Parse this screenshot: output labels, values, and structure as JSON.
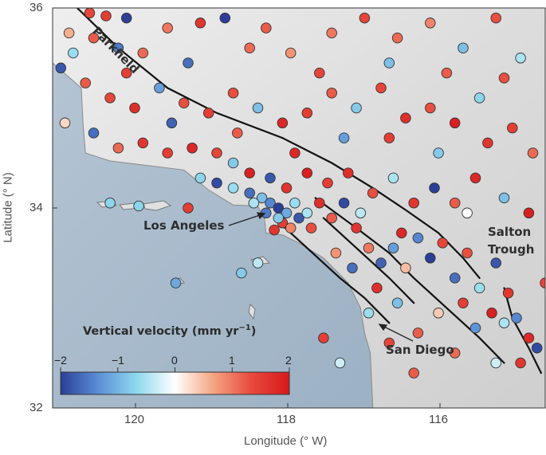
{
  "axes": {
    "xlabel": "Longitude (° W)",
    "ylabel": "Latitude (° N)",
    "x_ticks": [
      "120",
      "118",
      "116"
    ],
    "y_ticks": [
      "36",
      "34",
      "32"
    ]
  },
  "places": {
    "parkfield": "Parkfield",
    "los_angeles": "Los Angeles",
    "salton_1": "Salton",
    "salton_2": "Trough",
    "san_diego": "San Diego"
  },
  "colorbar": {
    "title_main": "Vertical velocity (mm yr",
    "title_sup": "−1",
    "title_close": ")",
    "ticks": [
      "−2",
      "−1",
      "0",
      "1",
      "2"
    ],
    "range": [
      -2,
      2
    ],
    "colors": [
      "#2b3f99",
      "#5b8fd6",
      "#8fd9ee",
      "#ffffff",
      "#f4a582",
      "#e84a3c",
      "#d7191c"
    ]
  },
  "map_data": {
    "lon_range": [
      121.0,
      115.0
    ],
    "lat_range": [
      32.0,
      36.0
    ],
    "faults": [
      [
        [
          120.7,
          36.0
        ],
        [
          120.2,
          35.6
        ],
        [
          119.6,
          35.2
        ],
        [
          119.0,
          34.95
        ],
        [
          118.2,
          34.7
        ],
        [
          117.6,
          34.45
        ],
        [
          117.1,
          34.2
        ],
        [
          116.7,
          33.98
        ],
        [
          116.3,
          33.75
        ],
        [
          116.0,
          33.5
        ],
        [
          115.8,
          33.3
        ]
      ],
      [
        [
          117.8,
          34.1
        ],
        [
          117.3,
          33.8
        ],
        [
          116.9,
          33.55
        ],
        [
          116.6,
          33.3
        ],
        [
          116.2,
          33.0
        ],
        [
          115.8,
          32.7
        ],
        [
          115.5,
          32.45
        ]
      ],
      [
        [
          117.7,
          33.9
        ],
        [
          117.3,
          33.6
        ],
        [
          116.9,
          33.3
        ],
        [
          116.6,
          33.05
        ]
      ],
      [
        [
          118.3,
          33.9
        ],
        [
          117.9,
          33.6
        ],
        [
          117.5,
          33.3
        ],
        [
          117.2,
          33.1
        ],
        [
          116.9,
          32.85
        ]
      ],
      [
        [
          115.5,
          33.2
        ],
        [
          115.4,
          32.9
        ],
        [
          115.2,
          32.6
        ],
        [
          115.05,
          32.35
        ]
      ]
    ],
    "coast": [
      [
        121.0,
        35.45
      ],
      [
        120.65,
        35.2
      ],
      [
        120.63,
        34.85
      ],
      [
        120.6,
        34.55
      ],
      [
        120.3,
        34.47
      ],
      [
        119.8,
        34.42
      ],
      [
        119.4,
        34.38
      ],
      [
        119.1,
        34.18
      ],
      [
        118.8,
        34.03
      ],
      [
        118.5,
        34.02
      ],
      [
        118.42,
        33.9
      ],
      [
        118.4,
        33.75
      ],
      [
        118.2,
        33.73
      ],
      [
        118.0,
        33.65
      ],
      [
        117.7,
        33.5
      ],
      [
        117.4,
        33.25
      ],
      [
        117.25,
        33.0
      ],
      [
        117.2,
        32.75
      ],
      [
        117.13,
        32.55
      ],
      [
        117.1,
        32.0
      ]
    ],
    "stations": [
      [
        120.55,
        35.95,
        1.4
      ],
      [
        120.35,
        35.92,
        1.5
      ],
      [
        120.1,
        35.9,
        -2.0
      ],
      [
        120.8,
        35.75,
        0.6
      ],
      [
        120.5,
        35.7,
        1.2
      ],
      [
        120.2,
        35.6,
        -1.5
      ],
      [
        119.9,
        35.55,
        1.1
      ],
      [
        119.6,
        35.8,
        1.0
      ],
      [
        119.2,
        35.85,
        1.6
      ],
      [
        118.9,
        35.9,
        -2.0
      ],
      [
        118.4,
        35.8,
        1.2
      ],
      [
        118.1,
        35.55,
        0.8
      ],
      [
        117.6,
        35.75,
        1.0
      ],
      [
        117.2,
        35.9,
        1.4
      ],
      [
        116.8,
        35.7,
        1.1
      ],
      [
        116.4,
        35.85,
        0.9
      ],
      [
        116.0,
        35.6,
        -0.9
      ],
      [
        115.6,
        35.9,
        1.3
      ],
      [
        115.3,
        35.5,
        -0.5
      ],
      [
        120.9,
        35.4,
        -1.8
      ],
      [
        120.6,
        35.25,
        1.2
      ],
      [
        120.3,
        35.1,
        1.4
      ],
      [
        120.0,
        35.0,
        1.7
      ],
      [
        119.7,
        35.2,
        -1.2
      ],
      [
        119.4,
        35.05,
        1.3
      ],
      [
        119.1,
        34.95,
        1.5
      ],
      [
        118.8,
        35.15,
        1.3
      ],
      [
        118.5,
        35.0,
        -0.9
      ],
      [
        118.2,
        34.85,
        1.8
      ],
      [
        117.9,
        34.95,
        1.5
      ],
      [
        117.6,
        35.15,
        1.2
      ],
      [
        117.3,
        35.0,
        -0.8
      ],
      [
        117.0,
        35.2,
        1.4
      ],
      [
        116.7,
        34.9,
        1.7
      ],
      [
        116.4,
        35.0,
        1.3
      ],
      [
        116.1,
        34.85,
        1.9
      ],
      [
        115.8,
        35.1,
        -0.7
      ],
      [
        115.4,
        34.8,
        1.5
      ],
      [
        120.85,
        34.85,
        0.3
      ],
      [
        120.5,
        34.75,
        -1.6
      ],
      [
        120.2,
        34.6,
        1.1
      ],
      [
        119.9,
        34.65,
        1.6
      ],
      [
        119.6,
        34.55,
        1.5
      ],
      [
        119.3,
        34.6,
        1.8
      ],
      [
        119.0,
        34.55,
        1.4
      ],
      [
        118.8,
        34.45,
        -0.8
      ],
      [
        118.6,
        34.35,
        1.9
      ],
      [
        118.35,
        34.3,
        -1.8
      ],
      [
        118.15,
        34.2,
        1.6
      ],
      [
        117.9,
        34.35,
        1.9
      ],
      [
        117.65,
        34.25,
        1.5
      ],
      [
        117.4,
        34.35,
        1.7
      ],
      [
        117.1,
        34.15,
        1.3
      ],
      [
        116.85,
        34.3,
        -0.5
      ],
      [
        116.6,
        34.05,
        1.6
      ],
      [
        116.35,
        34.2,
        -2.0
      ],
      [
        116.1,
        34.05,
        1.2
      ],
      [
        115.85,
        34.3,
        1.8
      ],
      [
        115.5,
        34.1,
        -0.9
      ],
      [
        115.2,
        33.95,
        1.9
      ],
      [
        119.2,
        34.3,
        -0.7
      ],
      [
        119.0,
        34.25,
        -1.9
      ],
      [
        118.8,
        34.2,
        -0.6
      ],
      [
        118.6,
        34.15,
        -1.6
      ],
      [
        118.45,
        34.1,
        -0.9
      ],
      [
        118.35,
        34.05,
        -1.4
      ],
      [
        118.25,
        34.0,
        -2.0
      ],
      [
        118.15,
        33.95,
        -1.1
      ],
      [
        118.05,
        34.05,
        -0.6
      ],
      [
        118.2,
        33.85,
        1.5
      ],
      [
        118.1,
        33.8,
        0.9
      ],
      [
        118.0,
        33.9,
        -1.8
      ],
      [
        117.9,
        33.95,
        -0.5
      ],
      [
        117.85,
        33.8,
        1.3
      ],
      [
        118.3,
        33.78,
        1.6
      ],
      [
        118.25,
        33.9,
        -0.8
      ],
      [
        118.4,
        33.95,
        -1.5
      ],
      [
        118.55,
        34.05,
        -0.5
      ],
      [
        117.75,
        34.05,
        1.7
      ],
      [
        117.6,
        33.9,
        1.2
      ],
      [
        117.45,
        34.05,
        -1.9
      ],
      [
        117.3,
        33.8,
        1.6
      ],
      [
        117.15,
        33.6,
        1.0
      ],
      [
        117.0,
        33.45,
        -1.7
      ],
      [
        116.85,
        33.6,
        -1.2
      ],
      [
        116.7,
        33.4,
        0.5
      ],
      [
        116.55,
        33.7,
        -1.4
      ],
      [
        116.4,
        33.5,
        -2.0
      ],
      [
        116.25,
        33.65,
        1.4
      ],
      [
        116.1,
        33.3,
        -1.6
      ],
      [
        115.95,
        33.55,
        1.3
      ],
      [
        115.8,
        33.2,
        -0.6
      ],
      [
        115.6,
        33.45,
        -1.8
      ],
      [
        115.45,
        33.15,
        1.6
      ],
      [
        115.35,
        32.9,
        -1.4
      ],
      [
        115.2,
        32.7,
        1.8
      ],
      [
        115.5,
        32.85,
        -0.5
      ],
      [
        115.65,
        32.95,
        1.9
      ],
      [
        115.85,
        32.8,
        -1.3
      ],
      [
        116.0,
        33.05,
        1.5
      ],
      [
        116.3,
        32.95,
        0.4
      ],
      [
        116.55,
        32.75,
        1.2
      ],
      [
        116.8,
        33.05,
        -0.9
      ],
      [
        117.05,
        33.2,
        1.7
      ],
      [
        117.15,
        32.95,
        -0.6
      ],
      [
        117.35,
        33.4,
        -1.6
      ],
      [
        117.55,
        33.55,
        0.8
      ],
      [
        116.9,
        32.65,
        1.4
      ],
      [
        116.1,
        32.55,
        1.1
      ],
      [
        115.6,
        32.45,
        -0.3
      ],
      [
        115.3,
        32.45,
        1.6
      ],
      [
        120.3,
        34.05,
        -0.7
      ],
      [
        119.95,
        34.02,
        -0.7
      ],
      [
        119.35,
        34.0,
        1.5
      ],
      [
        118.7,
        33.35,
        -0.8
      ],
      [
        118.5,
        33.45,
        -0.4
      ],
      [
        119.5,
        33.25,
        -1.1
      ],
      [
        117.7,
        32.7,
        1.5
      ],
      [
        117.5,
        32.45,
        -0.3
      ],
      [
        116.6,
        32.35,
        1.2
      ],
      [
        115.1,
        32.6,
        -1.9
      ],
      [
        115.0,
        33.25,
        1.4
      ],
      [
        115.15,
        34.55,
        1.1
      ],
      [
        115.7,
        34.65,
        1.6
      ],
      [
        116.3,
        34.55,
        -0.8
      ],
      [
        116.9,
        34.7,
        1.5
      ],
      [
        117.45,
        34.7,
        -1.2
      ],
      [
        118.05,
        34.55,
        1.8
      ],
      [
        118.75,
        34.75,
        1.2
      ],
      [
        119.55,
        34.85,
        -1.7
      ],
      [
        120.1,
        35.35,
        1.5
      ],
      [
        120.75,
        35.55,
        -0.6
      ],
      [
        116.2,
        35.35,
        1.2
      ],
      [
        116.9,
        35.45,
        -0.9
      ],
      [
        117.75,
        35.35,
        1.4
      ],
      [
        118.6,
        35.6,
        1.1
      ],
      [
        119.35,
        35.45,
        -1.6
      ],
      [
        115.5,
        35.3,
        1.3
      ],
      [
        115.95,
        33.95,
        0.0
      ],
      [
        117.25,
        33.95,
        -0.4
      ],
      [
        116.75,
        33.75,
        1.8
      ]
    ]
  }
}
